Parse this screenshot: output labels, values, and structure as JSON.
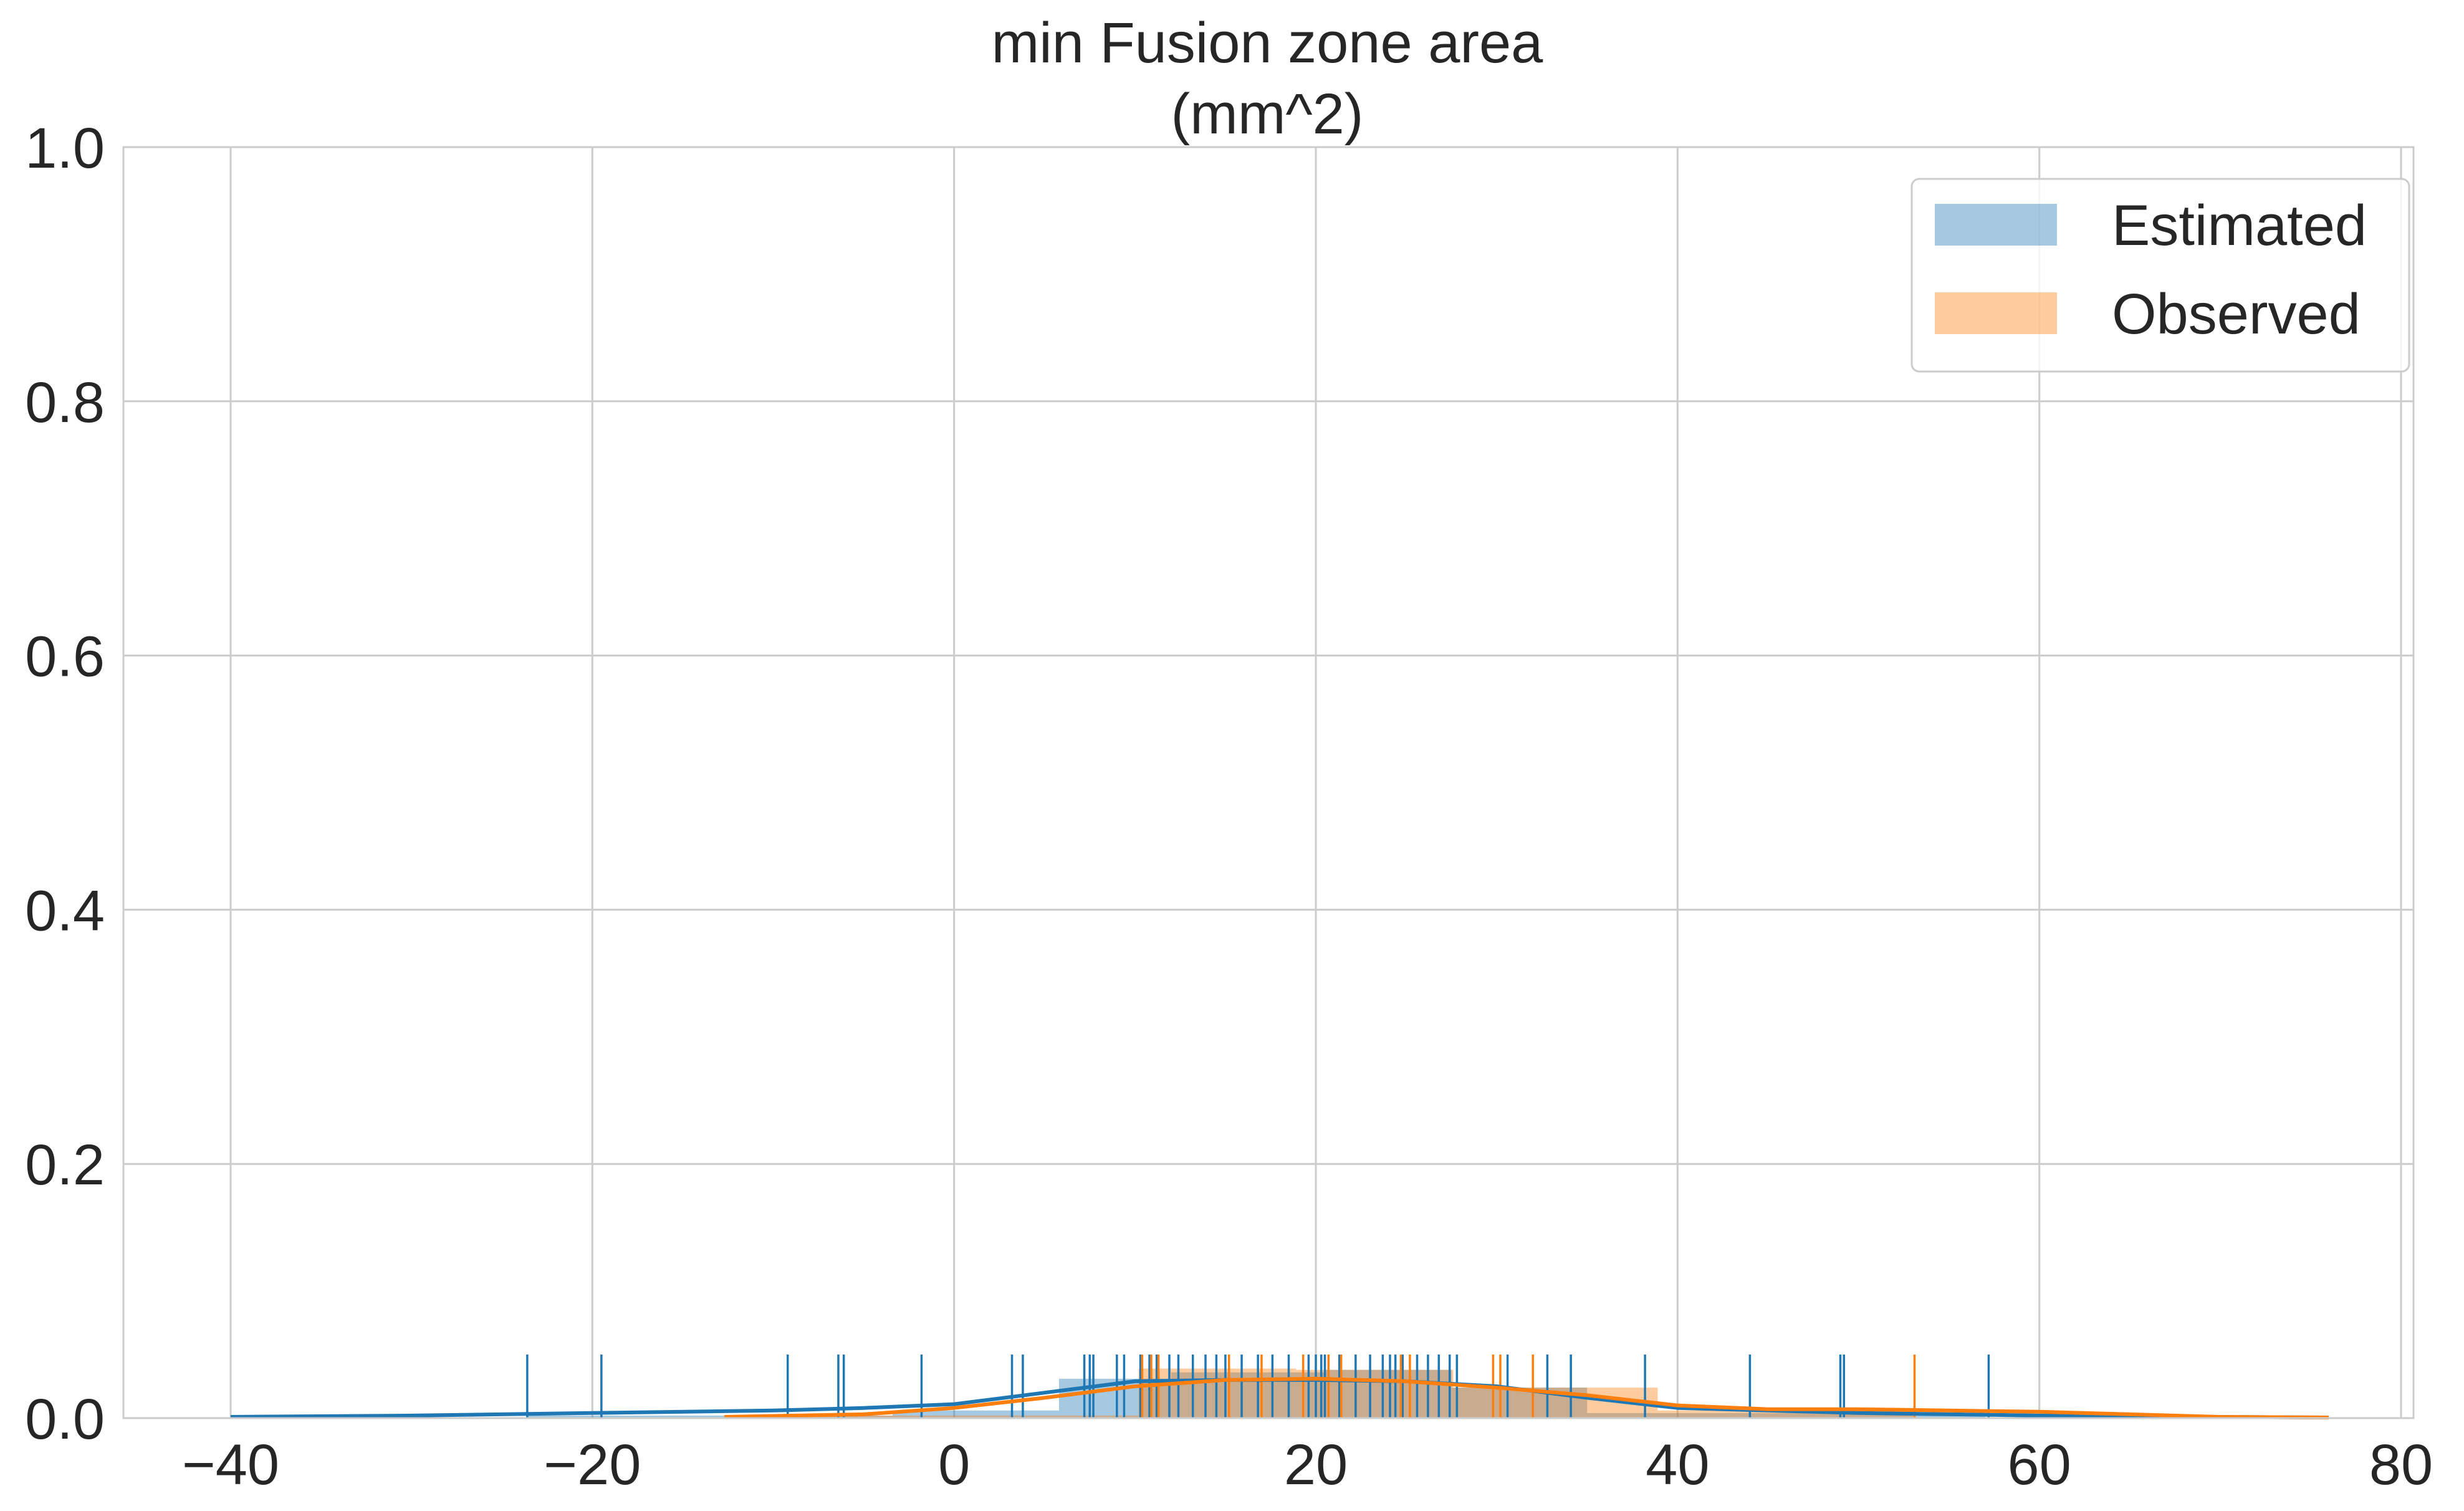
{
  "chart_data": {
    "type": "histogram",
    "title": "min Fusion zone area\n(mm^2)",
    "title_lines": [
      "min Fusion zone area",
      "(mm^2)"
    ],
    "xlabel": "",
    "ylabel": "",
    "xlim": [
      -43,
      82
    ],
    "ylim": [
      0,
      1.0
    ],
    "xticks": [
      -40,
      -20,
      0,
      20,
      40,
      60,
      80
    ],
    "xtick_labels": [
      "−40",
      "−20",
      "0",
      "20",
      "40",
      "60",
      "80"
    ],
    "yticks": [
      0.0,
      0.2,
      0.4,
      0.6,
      0.8,
      1.0
    ],
    "ytick_labels": [
      "0.0",
      "0.2",
      "0.4",
      "0.6",
      "0.8",
      "1.0"
    ],
    "grid": true,
    "legend_position": "top-right",
    "series": [
      {
        "name": "Estimated",
        "color": "#1f77b4",
        "histogram": {
          "bins": [
            [
              -23.6,
              -3.4
            ],
            [
              -3.4,
              5.8
            ],
            [
              5.8,
              12.0
            ],
            [
              12.0,
              20.5
            ],
            [
              20.5,
              27.5
            ],
            [
              27.5,
              35.0
            ],
            [
              35.0,
              57.0
            ]
          ],
          "density": [
            0.002,
            0.006,
            0.031,
            0.036,
            0.038,
            0.024,
            0.004
          ]
        },
        "kde": {
          "x": [
            -40,
            -30,
            -20,
            -10,
            -5,
            0,
            5,
            10,
            15,
            20,
            25,
            30,
            35,
            40,
            50,
            60,
            70,
            76
          ],
          "y": [
            0.001,
            0.002,
            0.004,
            0.006,
            0.008,
            0.011,
            0.02,
            0.029,
            0.03,
            0.03,
            0.029,
            0.025,
            0.016,
            0.008,
            0.004,
            0.002,
            0.001,
            0.0005
          ]
        },
        "rug": [
          -23.6,
          -19.5,
          -9.2,
          -6.4,
          -6.1,
          -1.8,
          3.2,
          3.8,
          7.2,
          7.5,
          7.7,
          9.0,
          9.4,
          10.3,
          10.8,
          11.2,
          11.9,
          12.4,
          13.2,
          13.9,
          14.5,
          15.0,
          15.9,
          16.8,
          17.6,
          18.5,
          19.6,
          20.0,
          20.3,
          20.5,
          21.3,
          22.2,
          23.0,
          23.7,
          24.1,
          24.4,
          24.8,
          25.6,
          26.2,
          26.8,
          27.4,
          27.8,
          30.6,
          32.8,
          34.1,
          38.2,
          44.0,
          49.0,
          49.2,
          57.2
        ]
      },
      {
        "name": "Observed",
        "color": "#ff7f0e",
        "histogram": {
          "bins": [
            [
              -12.7,
              10.2
            ],
            [
              10.2,
              18.9
            ],
            [
              18.9,
              27.6
            ],
            [
              27.6,
              35.2
            ],
            [
              35.2,
              38.9
            ],
            [
              38.9,
              53.0
            ]
          ],
          "density": [
            0.002,
            0.039,
            0.038,
            0.024,
            0.024,
            0.006
          ]
        },
        "kde": {
          "x": [
            -12.7,
            -5,
            0,
            5,
            10,
            15,
            20,
            25,
            30,
            35,
            40,
            45,
            50,
            55,
            60,
            65,
            70,
            76
          ],
          "y": [
            0.001,
            0.003,
            0.008,
            0.016,
            0.025,
            0.03,
            0.031,
            0.029,
            0.024,
            0.018,
            0.01,
            0.007,
            0.007,
            0.006,
            0.005,
            0.003,
            0.001,
            0.0005
          ]
        },
        "rug": [
          10.4,
          10.9,
          11.3,
          15.2,
          17.0,
          19.3,
          20.7,
          21.4,
          24.7,
          25.2,
          29.8,
          30.2,
          32.0,
          53.1
        ]
      }
    ],
    "legend": [
      "Estimated",
      "Observed"
    ]
  }
}
